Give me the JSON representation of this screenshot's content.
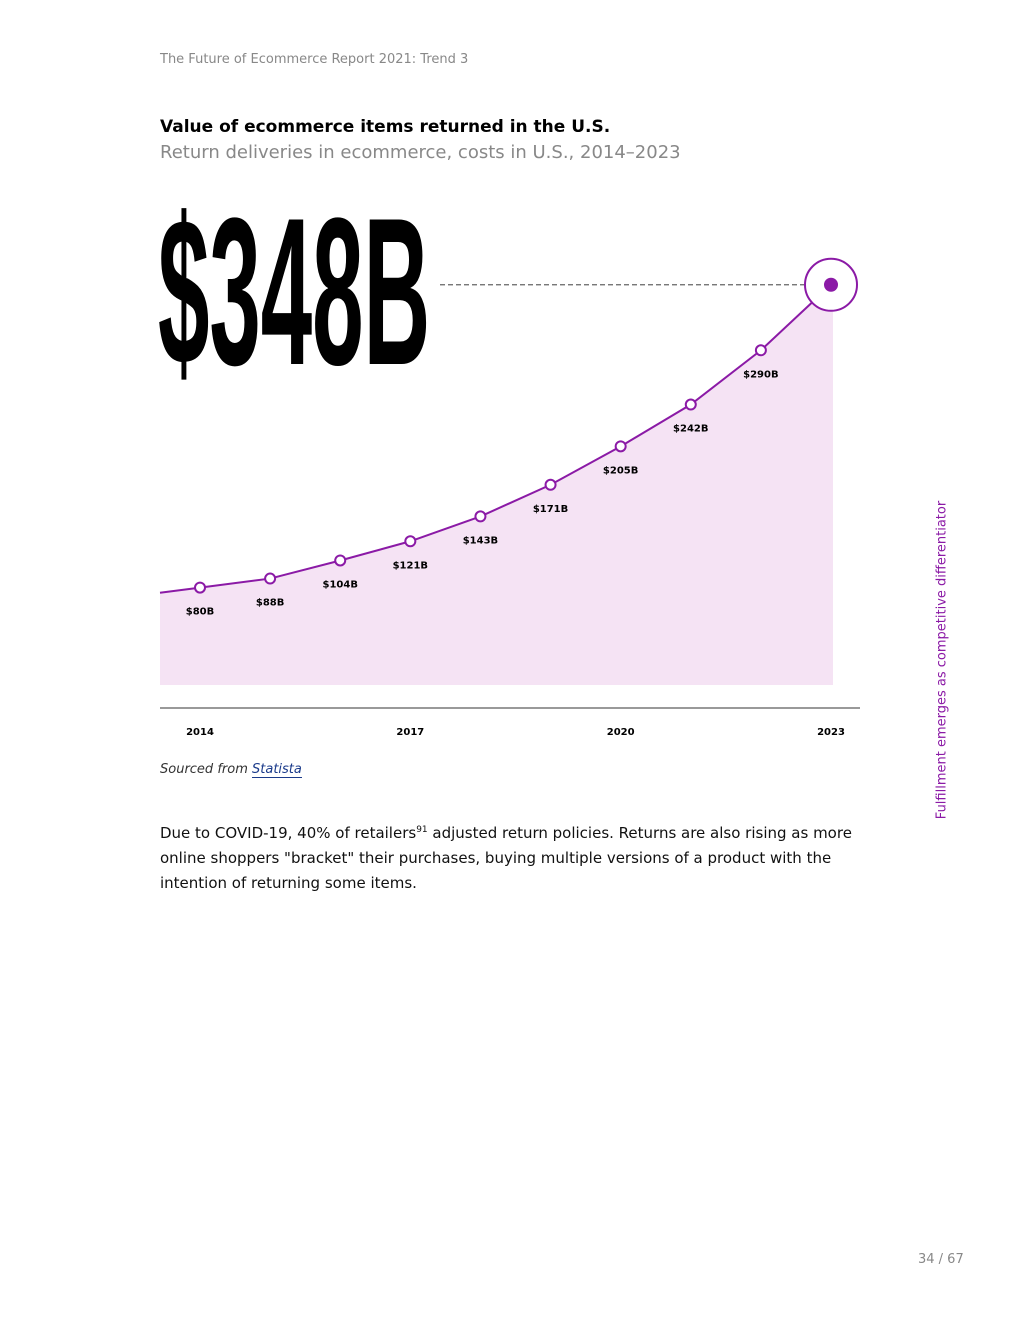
{
  "header": "The Future of Ecommerce Report 2021: Trend 3",
  "chart_data": {
    "type": "line",
    "title": "Value of ecommerce items returned in the U.S.",
    "subtitle": "Return deliveries in ecommerce, costs in U.S., 2014–2023",
    "categories": [
      "2014",
      null,
      null,
      "2017",
      null,
      null,
      "2020",
      null,
      null,
      "2023"
    ],
    "values": [
      80,
      88,
      104,
      121,
      143,
      171,
      205,
      242,
      290,
      348
    ],
    "value_labels": [
      "$80B",
      "$88B",
      "$104B",
      "$121B",
      "$143B",
      "$171B",
      "$205B",
      "$242B",
      "$290B",
      "$348B"
    ],
    "color": "#8b1aa6",
    "area_color": "#f5e3f4"
  },
  "source": {
    "prefix": "Sourced from",
    "link": "Statista"
  },
  "body": {
    "before": "Due to COVID-19, 40% of retailers",
    "sup": "91",
    "after": " adjusted return policies. Returns are also rising as more online shoppers \"bracket\" their purchases, buying multiple versions of a product with the intention of returning some items."
  },
  "sidebar": "Fulfillment emerges as competitive differentiator",
  "page_number": "34 / 67"
}
